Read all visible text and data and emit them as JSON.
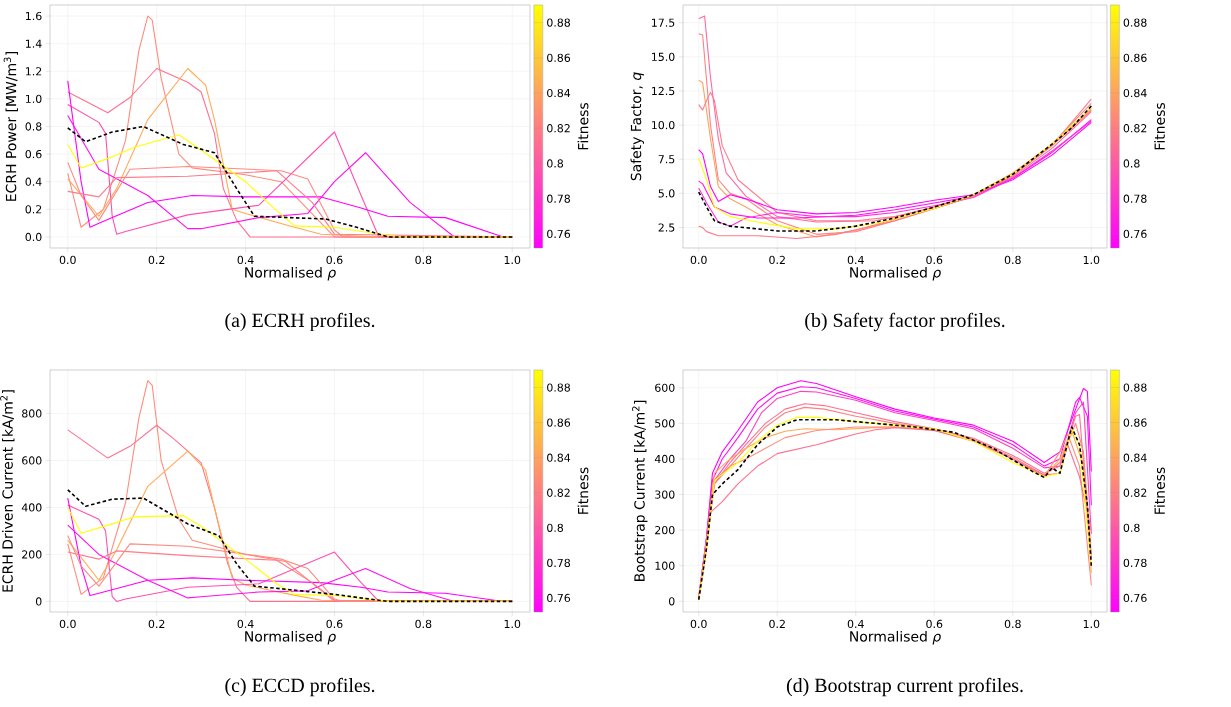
{
  "chart_data": [
    {
      "type": "line",
      "xlabel": "Normalised *ρ*",
      "ylabel": "ECRH Power [MW/m$^{3}$]",
      "clabel": "Fitness",
      "clim": [
        0.752,
        0.89
      ],
      "cticks": [
        0.76,
        0.78,
        0.8,
        0.82,
        0.84,
        0.86,
        0.88
      ],
      "xlim": [
        -0.04,
        1.04
      ],
      "ylim": [
        -0.08,
        1.68
      ],
      "xticks": [
        {
          "value": 0,
          "label": "0.0"
        },
        {
          "value": 0.2,
          "label": "0.2"
        },
        {
          "value": 0.4,
          "label": "0.4"
        },
        {
          "value": 0.6,
          "label": "0.6"
        },
        {
          "value": 0.8,
          "label": "0.8"
        },
        {
          "value": 1,
          "label": "1.0"
        }
      ],
      "yticks": [
        {
          "value": 0,
          "label": "0.0"
        },
        {
          "value": 0.2,
          "label": "0.2"
        },
        {
          "value": 0.4,
          "label": "0.4"
        },
        {
          "value": 0.6,
          "label": "0.6"
        },
        {
          "value": 0.8,
          "label": "0.8"
        },
        {
          "value": 1,
          "label": "1.0"
        },
        {
          "value": 1.2,
          "label": "1.2"
        },
        {
          "value": 1.4,
          "label": "1.4"
        },
        {
          "value": 1.6,
          "label": "1.6"
        }
      ],
      "grid": true,
      "annotations": [
        "(a) ECRH profiles."
      ],
      "series": [
        {
          "color": "#ff8c7a",
          "x": [
            0,
            0.03,
            0.08,
            0.13,
            0.16,
            0.18,
            0.19,
            0.21,
            0.25,
            0.28,
            0.4,
            0.48,
            0.6,
            1.0
          ],
          "values": [
            0.46,
            0.07,
            0.2,
            0.7,
            1.35,
            1.6,
            1.57,
            1.15,
            0.6,
            0.5,
            0.45,
            0.4,
            0,
            0
          ]
        },
        {
          "color": "#ff7090",
          "x": [
            0,
            0.09,
            0.14,
            0.2,
            0.27,
            0.3,
            0.33,
            0.35,
            0.38,
            0.41,
            1.0
          ],
          "values": [
            1.05,
            0.9,
            1.01,
            1.22,
            1.12,
            1.05,
            0.75,
            0.35,
            0.12,
            0,
            0
          ]
        },
        {
          "color": "#ffaa55",
          "x": [
            0,
            0.07,
            0.11,
            0.18,
            0.27,
            0.31,
            0.33,
            0.37,
            0.4,
            0.5,
            0.57,
            0.7,
            1.0
          ],
          "values": [
            0.42,
            0.15,
            0.35,
            0.85,
            1.22,
            1.1,
            0.85,
            0.2,
            0.17,
            0.08,
            0.02,
            0,
            0
          ]
        },
        {
          "color": "#ff50b0",
          "x": [
            0,
            0.07,
            0.085,
            0.1,
            0.11,
            0.13,
            0.27,
            0.43,
            0.6,
            0.66,
            0.7,
            1.0
          ],
          "values": [
            0.96,
            0.83,
            0.75,
            0.15,
            0.02,
            0.04,
            0.16,
            0.23,
            0.76,
            0.3,
            0,
            0
          ]
        },
        {
          "color": "#ff00ff",
          "x": [
            0,
            0.03,
            0.05,
            0.07,
            0.18,
            0.28,
            0.4,
            0.57,
            0.66,
            0.72,
            0.85,
            0.98,
            1.0
          ],
          "values": [
            1.13,
            0.4,
            0.07,
            0.1,
            0.25,
            0.3,
            0.29,
            0.29,
            0.21,
            0.15,
            0.14,
            0,
            0
          ]
        },
        {
          "color": "#ff10f0",
          "x": [
            0,
            0.07,
            0.18,
            0.27,
            0.3,
            0.43,
            0.54,
            0.6,
            0.67,
            0.77,
            0.87,
            1.0
          ],
          "values": [
            0.88,
            0.49,
            0.3,
            0.06,
            0.06,
            0.14,
            0.17,
            0.4,
            0.61,
            0.25,
            0,
            0
          ]
        },
        {
          "color": "#ff7a8a",
          "x": [
            0,
            0.07,
            0.11,
            0.27,
            0.47,
            0.55,
            0.6,
            1.0
          ],
          "values": [
            0.33,
            0.29,
            0.43,
            0.44,
            0.48,
            0.25,
            0.02,
            0
          ]
        },
        {
          "color": "#ff8a80",
          "x": [
            0,
            0.03,
            0.07,
            0.14,
            0.27,
            0.48,
            0.54,
            0.6,
            0.62,
            1.0
          ],
          "values": [
            0.54,
            0.3,
            0.12,
            0.49,
            0.51,
            0.48,
            0.42,
            0.05,
            0,
            0
          ]
        },
        {
          "color": "#ffff00",
          "x": [
            0,
            0.03,
            0.1,
            0.15,
            0.25,
            0.3,
            0.4,
            0.46,
            0.51,
            0.6,
            0.68,
            0.75,
            1.0
          ],
          "values": [
            0.67,
            0.5,
            0.58,
            0.65,
            0.74,
            0.63,
            0.4,
            0.22,
            0.08,
            0.07,
            0.03,
            0,
            0
          ]
        },
        {
          "color": "#000000",
          "line_style": "dashed",
          "x": [
            0,
            0.04,
            0.1,
            0.17,
            0.26,
            0.33,
            0.38,
            0.42,
            0.5,
            0.58,
            0.65,
            0.72,
            1.0
          ],
          "values": [
            0.79,
            0.69,
            0.76,
            0.8,
            0.67,
            0.61,
            0.35,
            0.15,
            0.14,
            0.13,
            0.07,
            0,
            0
          ]
        }
      ]
    },
    {
      "type": "line",
      "xlabel": "Normalised *ρ*",
      "ylabel": "Safety Factor, *q*",
      "clabel": "Fitness",
      "clim": [
        0.752,
        0.89
      ],
      "cticks": [
        0.76,
        0.78,
        0.8,
        0.82,
        0.84,
        0.86,
        0.88
      ],
      "xlim": [
        -0.04,
        1.04
      ],
      "ylim": [
        1.0,
        18.8
      ],
      "xticks": [
        {
          "value": 0,
          "label": "0.0"
        },
        {
          "value": 0.2,
          "label": "0.2"
        },
        {
          "value": 0.4,
          "label": "0.4"
        },
        {
          "value": 0.6,
          "label": "0.6"
        },
        {
          "value": 0.8,
          "label": "0.8"
        },
        {
          "value": 1,
          "label": "1.0"
        }
      ],
      "yticks": [
        {
          "value": 2.5,
          "label": "2.5"
        },
        {
          "value": 5,
          "label": "5.0"
        },
        {
          "value": 7.5,
          "label": "7.5"
        },
        {
          "value": 10,
          "label": "10.0"
        },
        {
          "value": 12.5,
          "label": "12.5"
        },
        {
          "value": 15,
          "label": "15.0"
        },
        {
          "value": 17.5,
          "label": "17.5"
        }
      ],
      "grid": true,
      "annotations": [
        "(b) Safety factor profiles."
      ],
      "series": [
        {
          "color": "#ff6aa0",
          "x": [
            0,
            0.015,
            0.03,
            0.05,
            0.07,
            0.12,
            0.2,
            0.3,
            0.45,
            0.6,
            0.7,
            0.8,
            0.9,
            1.0
          ],
          "values": [
            17.8,
            18.0,
            13.5,
            9.0,
            6.5,
            4.8,
            3.3,
            2.9,
            3.0,
            3.9,
            4.8,
            6.2,
            8.3,
            11.0
          ]
        },
        {
          "color": "#ff8080",
          "x": [
            0,
            0.01,
            0.03,
            0.05,
            0.08,
            0.12,
            0.2,
            0.3,
            0.4,
            0.5,
            0.6,
            0.7,
            0.8,
            0.9,
            1.0
          ],
          "values": [
            16.7,
            16.6,
            10.0,
            6.0,
            5.0,
            4.6,
            3.0,
            2.0,
            2.2,
            3.0,
            3.9,
            4.9,
            6.4,
            8.6,
            11.6
          ]
        },
        {
          "color": "#ffa060",
          "x": [
            0,
            0.01,
            0.03,
            0.05,
            0.08,
            0.12,
            0.2,
            0.3,
            0.4,
            0.5,
            0.6,
            0.7,
            0.8,
            0.9,
            1.0
          ],
          "values": [
            13.3,
            13.1,
            9.0,
            5.5,
            4.6,
            4.0,
            2.7,
            1.8,
            2.3,
            3.1,
            4.0,
            4.9,
            6.5,
            8.6,
            11.2
          ]
        },
        {
          "color": "#ff7a8a",
          "x": [
            0,
            0.01,
            0.02,
            0.03,
            0.04,
            0.06,
            0.1,
            0.15,
            0.2,
            0.3,
            0.4,
            0.5,
            0.6,
            0.7,
            0.8,
            0.9,
            1.0
          ],
          "values": [
            11.5,
            11.1,
            11.8,
            12.4,
            11.8,
            8.5,
            6.0,
            4.8,
            3.6,
            3.0,
            3.0,
            3.3,
            4.0,
            4.8,
            6.3,
            8.5,
            11.9
          ]
        },
        {
          "color": "#ff00ff",
          "x": [
            0,
            0.01,
            0.03,
            0.05,
            0.08,
            0.12,
            0.2,
            0.3,
            0.4,
            0.5,
            0.6,
            0.7,
            0.8,
            0.9,
            1.0
          ],
          "values": [
            8.2,
            7.9,
            5.5,
            4.4,
            4.9,
            4.6,
            3.8,
            3.5,
            3.6,
            4.0,
            4.5,
            4.9,
            6.0,
            7.8,
            10.2
          ]
        },
        {
          "color": "#ff10f0",
          "x": [
            0,
            0.01,
            0.04,
            0.08,
            0.15,
            0.25,
            0.4,
            0.5,
            0.6,
            0.7,
            0.8,
            0.9,
            1.0
          ],
          "values": [
            5.9,
            5.7,
            4.0,
            3.5,
            3.2,
            3.2,
            3.4,
            3.8,
            4.3,
            4.8,
            6.1,
            8.0,
            10.4
          ]
        },
        {
          "color": "#ff30e0",
          "x": [
            0,
            0.02,
            0.05,
            0.08,
            0.12,
            0.2,
            0.3,
            0.4,
            0.5,
            0.6,
            0.7,
            0.8,
            0.9,
            1.0
          ],
          "values": [
            5.4,
            4.3,
            2.9,
            2.6,
            3.2,
            3.6,
            3.3,
            3.3,
            3.6,
            4.1,
            4.7,
            6.1,
            8.1,
            10.3
          ]
        },
        {
          "color": "#ff7a8a",
          "x": [
            0,
            0.01,
            0.02,
            0.05,
            0.15,
            0.25,
            0.35,
            0.5,
            0.6,
            0.7,
            0.8,
            0.9,
            1.0
          ],
          "values": [
            2.6,
            2.5,
            2.2,
            1.9,
            1.9,
            1.7,
            2.0,
            3.0,
            3.9,
            4.8,
            6.3,
            8.5,
            11.1
          ]
        },
        {
          "color": "#ffff00",
          "x": [
            0,
            0.02,
            0.04,
            0.08,
            0.15,
            0.25,
            0.35,
            0.45,
            0.6,
            0.7,
            0.8,
            0.9,
            1.0
          ],
          "values": [
            7.6,
            6.0,
            4.0,
            3.3,
            2.9,
            2.4,
            2.4,
            2.8,
            3.9,
            4.9,
            6.4,
            8.6,
            11.3
          ]
        },
        {
          "color": "#000000",
          "line_style": "dashed",
          "x": [
            0,
            0.02,
            0.04,
            0.08,
            0.2,
            0.3,
            0.4,
            0.5,
            0.6,
            0.7,
            0.8,
            0.9,
            0.95,
            1.0
          ],
          "values": [
            5.1,
            4.0,
            3.0,
            2.6,
            2.25,
            2.25,
            2.6,
            3.2,
            4.0,
            4.9,
            6.4,
            8.6,
            9.8,
            11.4
          ]
        }
      ]
    },
    {
      "type": "line",
      "xlabel": "Normalised *ρ*",
      "ylabel": "ECRH Driven Current [kA/m$^{2}$]",
      "clabel": "Fitness",
      "clim": [
        0.752,
        0.89
      ],
      "cticks": [
        0.76,
        0.78,
        0.8,
        0.82,
        0.84,
        0.86,
        0.88
      ],
      "xlim": [
        -0.04,
        1.04
      ],
      "ylim": [
        -45,
        985
      ],
      "xticks": [
        {
          "value": 0,
          "label": "0.0"
        },
        {
          "value": 0.2,
          "label": "0.2"
        },
        {
          "value": 0.4,
          "label": "0.4"
        },
        {
          "value": 0.6,
          "label": "0.6"
        },
        {
          "value": 0.8,
          "label": "0.8"
        },
        {
          "value": 1,
          "label": "1.0"
        }
      ],
      "yticks": [
        0,
        200,
        400,
        600,
        800
      ],
      "grid": true,
      "annotations": [
        "(c) ECCD profiles."
      ],
      "series": [
        {
          "color": "#ff8c7a",
          "x": [
            0,
            0.03,
            0.08,
            0.13,
            0.16,
            0.18,
            0.19,
            0.21,
            0.25,
            0.28,
            0.4,
            0.49,
            0.6,
            1.0
          ],
          "values": [
            245,
            30,
            100,
            420,
            780,
            940,
            920,
            600,
            350,
            260,
            200,
            170,
            0,
            0
          ]
        },
        {
          "color": "#ff7090",
          "x": [
            0,
            0.09,
            0.14,
            0.2,
            0.24,
            0.3,
            0.33,
            0.36,
            0.38,
            0.41,
            1.0
          ],
          "values": [
            730,
            610,
            660,
            750,
            690,
            590,
            400,
            160,
            60,
            0,
            0
          ]
        },
        {
          "color": "#ffaa55",
          "x": [
            0,
            0.07,
            0.11,
            0.18,
            0.27,
            0.31,
            0.33,
            0.37,
            0.4,
            0.5,
            0.57,
            0.7,
            1.0
          ],
          "values": [
            260,
            90,
            220,
            490,
            640,
            560,
            400,
            100,
            70,
            30,
            5,
            0,
            0
          ]
        },
        {
          "color": "#ff50b0",
          "x": [
            0,
            0.07,
            0.085,
            0.1,
            0.11,
            0.13,
            0.27,
            0.43,
            0.6,
            0.66,
            0.7,
            1.0
          ],
          "values": [
            410,
            350,
            300,
            20,
            0,
            10,
            60,
            75,
            210,
            80,
            0,
            0
          ]
        },
        {
          "color": "#ff00ff",
          "x": [
            0,
            0.03,
            0.05,
            0.07,
            0.18,
            0.28,
            0.4,
            0.57,
            0.66,
            0.72,
            0.85,
            0.98,
            1.0
          ],
          "values": [
            440,
            150,
            25,
            35,
            90,
            100,
            90,
            80,
            60,
            40,
            35,
            0,
            0
          ]
        },
        {
          "color": "#ff10f0",
          "x": [
            0,
            0.07,
            0.18,
            0.27,
            0.3,
            0.43,
            0.54,
            0.6,
            0.67,
            0.77,
            0.87,
            1.0
          ],
          "values": [
            325,
            200,
            90,
            15,
            20,
            40,
            45,
            90,
            140,
            55,
            0,
            0
          ]
        },
        {
          "color": "#ff7a8a",
          "x": [
            0,
            0.07,
            0.11,
            0.27,
            0.47,
            0.55,
            0.6,
            1.0
          ],
          "values": [
            210,
            180,
            215,
            195,
            175,
            80,
            5,
            0
          ]
        },
        {
          "color": "#ff8a80",
          "x": [
            0,
            0.03,
            0.07,
            0.14,
            0.27,
            0.48,
            0.54,
            0.6,
            0.62,
            1.0
          ],
          "values": [
            280,
            150,
            65,
            245,
            235,
            180,
            140,
            10,
            0,
            0
          ]
        },
        {
          "color": "#ffff00",
          "x": [
            0,
            0.03,
            0.1,
            0.15,
            0.26,
            0.3,
            0.4,
            0.47,
            0.51,
            0.6,
            0.72,
            1.0
          ],
          "values": [
            400,
            290,
            330,
            360,
            365,
            320,
            180,
            75,
            30,
            25,
            0,
            0
          ]
        },
        {
          "color": "#000000",
          "line_style": "dashed",
          "x": [
            0,
            0.04,
            0.1,
            0.17,
            0.27,
            0.34,
            0.38,
            0.42,
            0.5,
            0.6,
            0.72,
            1.0
          ],
          "values": [
            475,
            405,
            435,
            440,
            330,
            280,
            160,
            65,
            50,
            30,
            0,
            0
          ]
        }
      ]
    },
    {
      "type": "line",
      "xlabel": "Normalised *ρ*",
      "ylabel": "Bootstrap Current [kA/m$^{2}$]",
      "clabel": "Fitness",
      "clim": [
        0.752,
        0.89
      ],
      "cticks": [
        0.76,
        0.78,
        0.8,
        0.82,
        0.84,
        0.86,
        0.88
      ],
      "xlim": [
        -0.04,
        1.04
      ],
      "ylim": [
        -30,
        650
      ],
      "xticks": [
        {
          "value": 0,
          "label": "0.0"
        },
        {
          "value": 0.2,
          "label": "0.2"
        },
        {
          "value": 0.4,
          "label": "0.4"
        },
        {
          "value": 0.6,
          "label": "0.6"
        },
        {
          "value": 0.8,
          "label": "0.8"
        },
        {
          "value": 1,
          "label": "1.0"
        }
      ],
      "yticks": [
        0,
        100,
        200,
        300,
        400,
        500,
        600
      ],
      "grid": true,
      "annotations": [
        "(d) Bootstrap current profiles."
      ],
      "series": [
        {
          "color": "#ff00ff",
          "x": [
            0,
            0.02,
            0.035,
            0.06,
            0.1,
            0.15,
            0.2,
            0.26,
            0.3,
            0.4,
            0.5,
            0.6,
            0.7,
            0.8,
            0.88,
            0.92,
            0.96,
            0.98,
            0.99,
            1.0
          ],
          "values": [
            10,
            180,
            360,
            420,
            480,
            560,
            600,
            620,
            612,
            575,
            540,
            515,
            495,
            450,
            390,
            420,
            540,
            598,
            590,
            365
          ]
        },
        {
          "color": "#ff10f0",
          "x": [
            0,
            0.02,
            0.035,
            0.06,
            0.1,
            0.15,
            0.2,
            0.26,
            0.3,
            0.4,
            0.5,
            0.6,
            0.7,
            0.8,
            0.88,
            0.92,
            0.96,
            0.97,
            0.99,
            1.0
          ],
          "values": [
            10,
            180,
            340,
            400,
            460,
            540,
            585,
            603,
            600,
            570,
            535,
            512,
            490,
            440,
            380,
            400,
            560,
            573,
            520,
            270
          ]
        },
        {
          "color": "#ff40c0",
          "x": [
            0,
            0.02,
            0.04,
            0.08,
            0.12,
            0.16,
            0.2,
            0.26,
            0.3,
            0.4,
            0.5,
            0.6,
            0.7,
            0.8,
            0.88,
            0.92,
            0.96,
            0.98,
            1.0
          ],
          "values": [
            8,
            170,
            340,
            400,
            450,
            530,
            570,
            590,
            588,
            565,
            530,
            508,
            485,
            430,
            375,
            380,
            530,
            560,
            190
          ]
        },
        {
          "color": "#ff7090",
          "x": [
            0,
            0.02,
            0.04,
            0.08,
            0.12,
            0.17,
            0.22,
            0.27,
            0.32,
            0.4,
            0.5,
            0.6,
            0.7,
            0.8,
            0.88,
            0.92,
            0.96,
            0.97,
            1.0
          ],
          "values": [
            5,
            160,
            330,
            390,
            440,
            500,
            540,
            555,
            550,
            530,
            505,
            485,
            458,
            410,
            360,
            380,
            520,
            525,
            120
          ]
        },
        {
          "color": "#ff8080",
          "x": [
            0,
            0.02,
            0.04,
            0.08,
            0.12,
            0.17,
            0.22,
            0.27,
            0.32,
            0.4,
            0.5,
            0.6,
            0.7,
            0.8,
            0.88,
            0.92,
            0.96,
            0.98,
            1.0
          ],
          "values": [
            5,
            160,
            330,
            380,
            430,
            490,
            530,
            545,
            540,
            520,
            500,
            483,
            455,
            405,
            355,
            390,
            500,
            420,
            130
          ]
        },
        {
          "color": "#ffaa55",
          "x": [
            0,
            0.02,
            0.04,
            0.08,
            0.12,
            0.17,
            0.22,
            0.27,
            0.35,
            0.45,
            0.5,
            0.6,
            0.7,
            0.8,
            0.88,
            0.92,
            0.95,
            0.98,
            1.0
          ],
          "values": [
            5,
            170,
            360,
            400,
            430,
            460,
            478,
            485,
            482,
            488,
            490,
            482,
            452,
            400,
            350,
            400,
            480,
            380,
            80
          ]
        },
        {
          "color": "#ff8c7a",
          "x": [
            0,
            0.02,
            0.04,
            0.08,
            0.12,
            0.17,
            0.22,
            0.3,
            0.4,
            0.5,
            0.6,
            0.7,
            0.8,
            0.88,
            0.92,
            0.94,
            0.97,
            1.0
          ],
          "values": [
            5,
            165,
            340,
            380,
            400,
            430,
            460,
            480,
            490,
            490,
            480,
            452,
            400,
            350,
            420,
            470,
            380,
            45
          ]
        },
        {
          "color": "#ff7090",
          "x": [
            0,
            0.02,
            0.03,
            0.06,
            0.1,
            0.15,
            0.2,
            0.3,
            0.35,
            0.4,
            0.45,
            0.5,
            0.6,
            0.7,
            0.8,
            0.88,
            0.92,
            0.94,
            0.97,
            1.0
          ],
          "values": [
            5,
            150,
            250,
            280,
            330,
            380,
            415,
            440,
            455,
            470,
            482,
            488,
            480,
            450,
            400,
            355,
            360,
            440,
            350,
            200
          ]
        },
        {
          "color": "#ffff00",
          "x": [
            0,
            0.02,
            0.04,
            0.1,
            0.15,
            0.2,
            0.25,
            0.3,
            0.4,
            0.5,
            0.6,
            0.7,
            0.8,
            0.88,
            0.92,
            0.95,
            0.97,
            1.0
          ],
          "values": [
            5,
            150,
            340,
            390,
            450,
            495,
            517,
            517,
            505,
            495,
            485,
            450,
            390,
            350,
            360,
            485,
            440,
            100
          ]
        },
        {
          "color": "#000000",
          "line_style": "dashed",
          "x": [
            0,
            0.02,
            0.035,
            0.06,
            0.1,
            0.15,
            0.2,
            0.25,
            0.35,
            0.45,
            0.55,
            0.65,
            0.75,
            0.85,
            0.88,
            0.9,
            0.92,
            0.95,
            0.97,
            0.99,
            1.0
          ],
          "values": [
            5,
            150,
            300,
            330,
            370,
            440,
            490,
            510,
            510,
            500,
            490,
            475,
            430,
            365,
            348,
            375,
            360,
            490,
            440,
            270,
            100
          ]
        }
      ]
    }
  ]
}
